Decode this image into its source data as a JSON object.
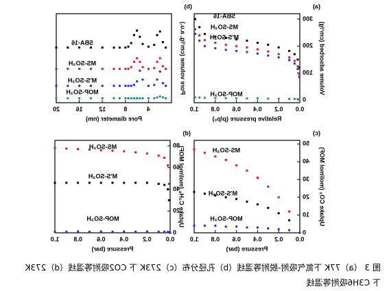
{
  "chart_data": [
    {
      "type": "line",
      "panel": "(a)",
      "xlabel": "Relative pressure (p/p₀)",
      "ylabel": "Volume adsorbed (cm³/g)",
      "x": [
        0.005,
        0.02,
        0.05,
        0.1,
        0.2,
        0.3,
        0.4,
        0.5,
        0.6,
        0.7,
        0.8,
        0.9,
        0.95,
        0.99
      ],
      "xlim": [
        0,
        1
      ],
      "xticks": [
        {
          "value": 0,
          "label": "0.0"
        },
        0.2,
        0.4,
        0.6,
        0.8,
        {
          "value": 1,
          "label": "1.0"
        }
      ],
      "ylim": [
        -10,
        320
      ],
      "yticks": [
        0,
        100,
        200,
        300
      ],
      "series": [
        {
          "name": "SBA-16",
          "color": "#000000",
          "values": [
            120,
            150,
            170,
            182,
            195,
            205,
            212,
            220,
            225,
            230,
            235,
            245,
            270,
            300
          ]
        },
        {
          "name": "MS-SO₃H",
          "color": "#e8141b",
          "values": [
            95,
            125,
            145,
            158,
            170,
            180,
            188,
            195,
            200,
            205,
            212,
            222,
            240,
            262
          ]
        },
        {
          "name": "M'S-SO₃H",
          "color": "#1c2bff",
          "values": [
            85,
            115,
            135,
            148,
            158,
            165,
            172,
            178,
            182,
            186,
            192,
            200,
            220,
            245
          ]
        },
        {
          "name": "MOP-SO₃H",
          "color": "#2a8c8c",
          "values": [
            2,
            3,
            4,
            4,
            5,
            5,
            6,
            6,
            6,
            7,
            7,
            8,
            9,
            10
          ]
        }
      ]
    },
    {
      "type": "line",
      "panel": "(b)",
      "xlabel": "Pore diameter (nm)",
      "ylabel": "Pore volume (cm³/g, a.u.)",
      "x": [
        1,
        1.5,
        2,
        2.5,
        3,
        4,
        5,
        5.5,
        6,
        6.5,
        7,
        7.5,
        8,
        9,
        10,
        12,
        14,
        16,
        18,
        20
      ],
      "xlim": [
        0,
        20
      ],
      "xticks": [
        4,
        8,
        12,
        16,
        20
      ],
      "ylim": [
        0,
        10
      ],
      "series": [
        {
          "name": "SBA-16",
          "color": "#000000",
          "values": [
            6.2,
            6.8,
            8.0,
            7.6,
            6.5,
            6.3,
            6.6,
            7.4,
            8.1,
            7.6,
            6.7,
            6.3,
            6.2,
            6.2,
            6.2,
            6.2,
            6.2,
            6.2,
            6.2,
            6.2
          ]
        },
        {
          "name": "MS-SO₃H",
          "color": "#e8141b",
          "values": [
            3.8,
            4.1,
            5.0,
            4.6,
            3.9,
            3.8,
            4.0,
            4.6,
            5.0,
            4.6,
            4.0,
            3.8,
            3.8,
            3.8,
            3.8,
            3.8,
            3.8,
            3.8,
            3.8,
            3.8
          ]
        },
        {
          "name": "M'S-SO₃H",
          "color": "#1c2bff",
          "values": [
            1.9,
            2.2,
            3.5,
            2.6,
            2.0,
            1.9,
            2.6,
            3.6,
            2.4,
            2.0,
            1.9,
            1.9,
            1.9,
            1.9,
            1.9,
            1.9,
            1.9,
            1.9,
            1.9,
            1.9
          ]
        },
        {
          "name": "MOP-SO₃H",
          "color": "#2a8c8c",
          "values": [
            0.5,
            0.6,
            0.7,
            0.6,
            0.5,
            0.5,
            0.5,
            0.5,
            0.5,
            0.5,
            0.5,
            0.5,
            0.5,
            0.5,
            0.5,
            0.5,
            0.5,
            0.5,
            0.5,
            0.5
          ]
        }
      ]
    },
    {
      "type": "line",
      "panel": "(c)",
      "xlabel": "Pressure (bar)",
      "ylabel": "Uptake CO₂ (mol/mol MOF)",
      "x": [
        0,
        0.1,
        0.2,
        0.3,
        0.4,
        0.5,
        0.6,
        0.7,
        0.8,
        0.9,
        1.0
      ],
      "xlim": [
        0,
        1
      ],
      "xticks": [
        {
          "value": 0,
          "label": "0.0"
        },
        0.2,
        0.4,
        0.6,
        0.8,
        {
          "value": 1,
          "label": "1.0"
        }
      ],
      "ylim": [
        0,
        52
      ],
      "yticks": [
        0,
        10,
        20,
        30,
        40,
        50
      ],
      "series": [
        {
          "name": "MS-SO₃H",
          "color": "#e8141b",
          "values": [
            0,
            12,
            20,
            26,
            31,
            35,
            38,
            41,
            43,
            45,
            47
          ]
        },
        {
          "name": "M'S-SO₃H",
          "color": "#000000",
          "values": [
            0,
            7,
            11,
            14,
            16,
            17.5,
            19,
            20,
            21,
            22,
            23
          ]
        },
        {
          "name": "MOP-SO₃H",
          "color": "#1c2bff",
          "values": [
            0,
            1.5,
            2,
            2.5,
            3,
            3,
            3.5,
            3.5,
            4,
            4,
            4
          ]
        }
      ]
    },
    {
      "type": "line",
      "panel": "(d)",
      "xlabel": "Pressure (bar)",
      "ylabel": "Uptake C₃H₆ (mol/mol MOF)",
      "x": [
        0,
        0.01,
        0.02,
        0.05,
        0.1,
        0.2,
        0.3,
        0.4,
        0.5,
        0.6,
        0.7,
        0.8,
        0.9,
        1.0
      ],
      "xlim": [
        0,
        1
      ],
      "xticks": [
        {
          "value": 0,
          "label": "0.0"
        },
        0.2,
        0.4,
        0.6,
        0.8,
        {
          "value": 1,
          "label": "1.0"
        }
      ],
      "ylim": [
        0,
        85
      ],
      "yticks": [
        0,
        20,
        40,
        60,
        80
      ],
      "series": [
        {
          "name": "MS-SO₃H",
          "color": "#e8141b",
          "values": [
            0,
            45,
            62,
            69,
            71,
            73,
            74,
            75,
            75.5,
            76,
            76.5,
            77,
            77.5,
            78
          ]
        },
        {
          "name": "M'S-SO₃H",
          "color": "#000000",
          "values": [
            0,
            30,
            40,
            44,
            45,
            46,
            46,
            46,
            46,
            46,
            46,
            46,
            46,
            46
          ]
        },
        {
          "name": "MOP-SO₃H",
          "color": "#1c2bff",
          "values": [
            0,
            0.5,
            0.8,
            1,
            1,
            1,
            1,
            1,
            1,
            1,
            1,
            1,
            1,
            1
          ]
        }
      ]
    }
  ],
  "caption": [
    "图 3 （a）77K 下氮气吸附-脱附等温线（b）孔径分布（c）273K 下 CO2吸附等温线（d）273K",
    "下 C3H6吸附等温线"
  ]
}
